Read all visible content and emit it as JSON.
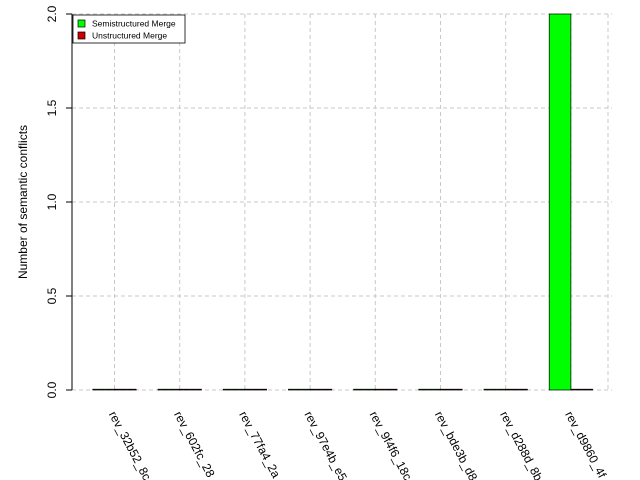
{
  "chart_data": {
    "type": "bar",
    "title": "",
    "xlabel": "",
    "ylabel": "Number of semantic conflicts",
    "ylim": [
      0,
      2.0
    ],
    "yticks": [
      "0.0",
      "0.5",
      "1.0",
      "1.5",
      "2.0"
    ],
    "grid": true,
    "legend_position": "top-left",
    "categories": [
      "rev_32b52_8c",
      "rev_602fc_28",
      "rev_77fa4_2a",
      "rev_97e4b_e5",
      "rev_9f4f6_18c",
      "rev_bde3b_d8",
      "rev_d288d_8b",
      "rev_d9860_4f"
    ],
    "series": [
      {
        "name": "Semistructured Merge",
        "color": "#00ff00",
        "values": [
          0,
          0,
          0,
          0,
          0,
          0,
          0,
          2
        ]
      },
      {
        "name": "Unstructured Merge",
        "color": "#cc0000",
        "values": [
          0,
          0,
          0,
          0,
          0,
          0,
          0,
          0
        ]
      }
    ]
  }
}
